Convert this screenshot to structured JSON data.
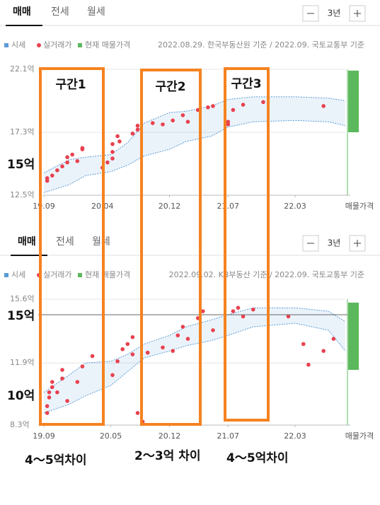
{
  "chart_data": [
    {
      "type": "band-scatter",
      "tabs": [
        "매매",
        "전세",
        "월세"
      ],
      "period": "3년",
      "source": "2022.08.29. 한국부동산원 기준 / 2022.09. 국토교통부 기준",
      "xlim": [
        2019.667,
        2022.667
      ],
      "xticks": [
        {
          "value": 2019.667,
          "label": "19.09"
        },
        {
          "value": 2020.25,
          "label": "20.04"
        },
        {
          "value": 2020.917,
          "label": "20.12"
        },
        {
          "value": 2021.5,
          "label": "21.07"
        },
        {
          "value": 2022.167,
          "label": "22.03"
        }
      ],
      "ylim": [
        12.5,
        22.1
      ],
      "yticks": [
        {
          "value": 22.1,
          "label": "22.1억"
        },
        {
          "value": 17.3,
          "label": "17.3억"
        },
        {
          "value": 12.5,
          "label": "12.5억"
        }
      ],
      "series": [
        {
          "name": "시세",
          "color": "#5b9bd5",
          "x": [
            2019.667,
            2019.917,
            2020.083,
            2020.333,
            2020.5,
            2020.667,
            2020.917,
            2021.083,
            2021.333,
            2021.5,
            2021.75,
            2022.167,
            2022.5,
            2022.667
          ],
          "upper": [
            14.2,
            15.2,
            15.4,
            15.6,
            16.5,
            18.0,
            18.8,
            18.9,
            19.3,
            19.8,
            20.0,
            20.0,
            19.9,
            19.7
          ],
          "lower": [
            12.7,
            13.3,
            14.0,
            14.3,
            14.8,
            15.5,
            16.0,
            16.6,
            17.0,
            17.7,
            18.1,
            18.2,
            18.1,
            17.8
          ]
        },
        {
          "name": "실거래가",
          "color": "#e8414f",
          "x": [
            2019.7,
            2019.7,
            2019.75,
            2019.8,
            2019.85,
            2019.9,
            2019.9,
            2019.95,
            2020.0,
            2020.05,
            2020.05,
            2020.25,
            2020.3,
            2020.35,
            2020.35,
            2020.35,
            2020.4,
            2020.42,
            2020.55,
            2020.6,
            2020.6,
            2020.75,
            2020.85,
            2020.95,
            2021.05,
            2021.1,
            2021.2,
            2021.3,
            2021.35,
            2021.5,
            2021.5,
            2021.55,
            2021.65,
            2021.85,
            2022.45
          ],
          "values": [
            13.6,
            13.8,
            14.0,
            14.4,
            14.7,
            15.0,
            15.4,
            15.6,
            15.1,
            16.0,
            16.1,
            14.6,
            15.0,
            15.3,
            15.8,
            16.4,
            17.0,
            16.6,
            17.2,
            17.5,
            17.8,
            18.0,
            17.9,
            18.2,
            18.6,
            18.1,
            19.0,
            19.2,
            19.3,
            17.9,
            18.1,
            19.0,
            19.4,
            19.6,
            19.3
          ]
        },
        {
          "name": "현재 매물가격",
          "color": "#5cb85c",
          "axis_label": "매물가격",
          "values": [
            17.3,
            22.0
          ]
        }
      ]
    },
    {
      "type": "band-scatter",
      "tabs": [
        "매매",
        "전세",
        "월세"
      ],
      "period": "3년",
      "source": "2022.09.02. KB부동산 기준 / 2022.09. 국토교통부 기준",
      "xlim": [
        2019.667,
        2022.667
      ],
      "xticks": [
        {
          "value": 2019.667,
          "label": "19.09"
        },
        {
          "value": 2020.333,
          "label": "20.05"
        },
        {
          "value": 2020.917,
          "label": "20.12"
        },
        {
          "value": 2021.5,
          "label": "21.07"
        },
        {
          "value": 2022.167,
          "label": "22.03"
        }
      ],
      "ylim": [
        8.3,
        15.6
      ],
      "yticks": [
        {
          "value": 15.6,
          "label": "15.6억"
        },
        {
          "value": 11.9,
          "label": "11.9억"
        },
        {
          "value": 8.3,
          "label": "8.3억"
        }
      ],
      "series": [
        {
          "name": "시세",
          "color": "#5b9bd5",
          "x": [
            2019.667,
            2019.917,
            2020.083,
            2020.333,
            2020.5,
            2020.667,
            2020.917,
            2021.083,
            2021.333,
            2021.5,
            2021.75,
            2022.167,
            2022.5,
            2022.667
          ],
          "upper": [
            10.2,
            11.2,
            11.9,
            12.0,
            12.4,
            13.0,
            13.5,
            14.0,
            14.4,
            14.7,
            15.1,
            15.1,
            14.9,
            14.3
          ],
          "lower": [
            9.0,
            9.5,
            10.0,
            10.6,
            11.4,
            12.2,
            12.6,
            12.9,
            13.2,
            13.5,
            14.0,
            14.2,
            13.8,
            12.6
          ]
        },
        {
          "name": "실거래가",
          "color": "#e8414f",
          "x": [
            2019.7,
            2019.7,
            2019.72,
            2019.72,
            2019.75,
            2019.75,
            2019.8,
            2019.85,
            2019.85,
            2019.9,
            2020.0,
            2020.05,
            2020.15,
            2020.35,
            2020.4,
            2020.45,
            2020.5,
            2020.55,
            2020.55,
            2020.6,
            2020.65,
            2020.7,
            2020.85,
            2020.95,
            2021.0,
            2021.05,
            2021.1,
            2021.2,
            2021.25,
            2021.35,
            2021.55,
            2021.6,
            2021.65,
            2021.75,
            2022.1,
            2022.25,
            2022.3,
            2022.45,
            2022.55
          ],
          "values": [
            9.0,
            9.4,
            9.9,
            10.2,
            10.5,
            10.8,
            10.2,
            11.0,
            11.5,
            9.7,
            10.8,
            11.7,
            12.3,
            11.2,
            12.0,
            12.7,
            13.0,
            12.4,
            13.4,
            9.0,
            8.5,
            12.5,
            12.8,
            12.6,
            13.5,
            14.0,
            13.3,
            14.5,
            14.9,
            13.8,
            14.9,
            15.1,
            14.6,
            15.0,
            14.6,
            13.0,
            11.8,
            12.6,
            13.3
          ]
        },
        {
          "name": "현재 매물가격",
          "color": "#5cb85c",
          "axis_label": "매물가격",
          "values": [
            11.5,
            15.4
          ]
        }
      ]
    }
  ],
  "annotations": {
    "sections": [
      "구간1",
      "구간2",
      "구간3"
    ],
    "left_labels": [
      "15억",
      "15억",
      "10억"
    ],
    "bottom_notes": [
      "4～5억차이",
      "2～3억 차이",
      "4～5억차이"
    ]
  }
}
